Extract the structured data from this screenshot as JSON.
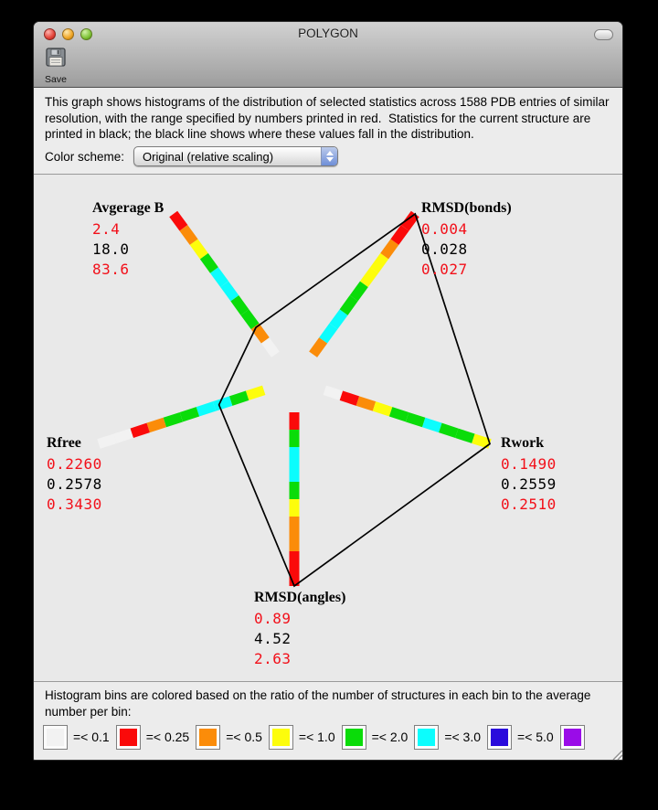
{
  "window": {
    "title": "POLYGON",
    "toolbar": {
      "save_label": "Save"
    },
    "description": "This graph shows histograms of the distribution of selected statistics across 1588 PDB entries of similar resolution, with the range specified by numbers printed in red.  Statistics for the current structure are printed in black; the black line shows where these values fall in the distribution.",
    "color_scheme": {
      "label": "Color scheme:",
      "selected": "Original (relative scaling)"
    }
  },
  "chart_data": {
    "type": "radar-histogram-polygon",
    "axes": [
      {
        "label": "Avgerage B",
        "min": "2.4",
        "current": "18.0",
        "max": "83.6",
        "angle_deg": 126,
        "bins_inner_to_outer": [
          "white",
          "orange",
          "green",
          "green",
          "cyan",
          "cyan",
          "green",
          "yellow",
          "orange",
          "red"
        ]
      },
      {
        "label": "RMSD(bonds)",
        "min": "0.004",
        "current": "0.028",
        "max": "0.027",
        "angle_deg": 54,
        "bins_inner_to_outer": [
          "orange",
          "cyan",
          "cyan",
          "green",
          "green",
          "yellow",
          "yellow",
          "orange",
          "red",
          "red"
        ]
      },
      {
        "label": "Rwork",
        "min": "0.1490",
        "current": "0.2559",
        "max": "0.2510",
        "angle_deg": -18,
        "bins_inner_to_outer": [
          "white",
          "red",
          "orange",
          "yellow",
          "green",
          "green",
          "cyan",
          "green",
          "green",
          "yellow"
        ]
      },
      {
        "label": "RMSD(angles)",
        "min": "0.89",
        "current": "4.52",
        "max": "2.63",
        "angle_deg": -90,
        "bins_inner_to_outer": [
          "red",
          "green",
          "cyan",
          "cyan",
          "green",
          "yellow",
          "orange",
          "orange",
          "red",
          "red"
        ]
      },
      {
        "label": "Rfree",
        "min": "0.2260",
        "current": "0.2578",
        "max": "0.3430",
        "angle_deg": 198,
        "bins_inner_to_outer": [
          "yellow",
          "green",
          "cyan",
          "cyan",
          "green",
          "green",
          "orange",
          "red",
          "white",
          "white"
        ]
      }
    ],
    "bin_colors": {
      "white": "#f2f2f2",
      "red": "#fa0a0a",
      "orange": "#fb8c09",
      "yellow": "#fdfd0c",
      "green": "#0adc09",
      "cyan": "#0cfdfd",
      "blue": "#2a0bdc",
      "purple": "#9a0ce8"
    },
    "polygon_line_color": "#000000",
    "value_text_colors": {
      "range": "#f2101a",
      "current": "#000000"
    }
  },
  "footer": {
    "note": "Histogram bins are colored based on the ratio of the number of structures in each bin to the average number per bin:",
    "legend": [
      {
        "color": "white",
        "label": "=< 0.1"
      },
      {
        "color": "red",
        "label": "=< 0.25"
      },
      {
        "color": "orange",
        "label": "=< 0.5"
      },
      {
        "color": "yellow",
        "label": "=< 1.0"
      },
      {
        "color": "green",
        "label": "=< 2.0"
      },
      {
        "color": "cyan",
        "label": "=< 3.0"
      },
      {
        "color": "blue",
        "label": "=< 5.0"
      },
      {
        "color": "purple",
        "label": ""
      }
    ]
  }
}
